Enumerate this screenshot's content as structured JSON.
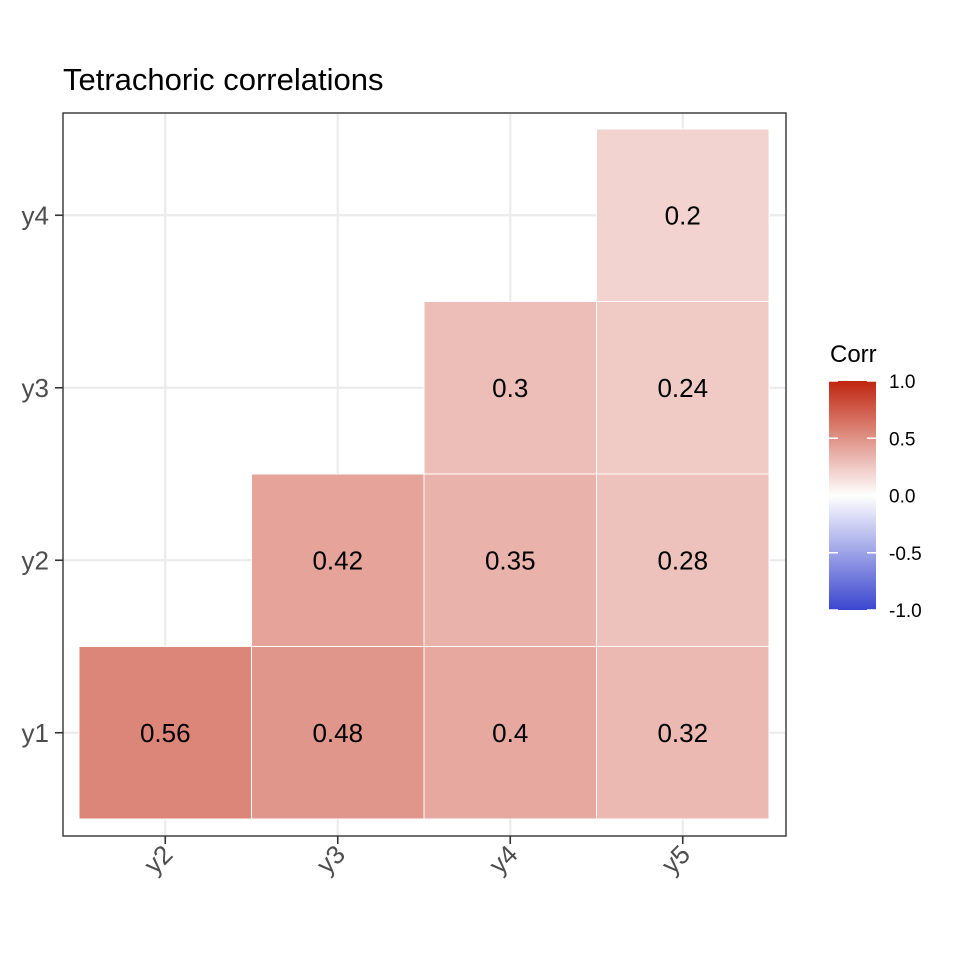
{
  "chart_data": {
    "type": "heatmap",
    "title": "Tetrachoric correlations",
    "x_categories": [
      "y2",
      "y3",
      "y4",
      "y5"
    ],
    "y_categories": [
      "y1",
      "y2",
      "y3",
      "y4"
    ],
    "cells": [
      {
        "x": "y2",
        "y": "y1",
        "value": 0.56,
        "label": "0.56"
      },
      {
        "x": "y3",
        "y": "y1",
        "value": 0.48,
        "label": "0.48"
      },
      {
        "x": "y4",
        "y": "y1",
        "value": 0.4,
        "label": "0.4"
      },
      {
        "x": "y5",
        "y": "y1",
        "value": 0.32,
        "label": "0.32"
      },
      {
        "x": "y3",
        "y": "y2",
        "value": 0.42,
        "label": "0.42"
      },
      {
        "x": "y4",
        "y": "y2",
        "value": 0.35,
        "label": "0.35"
      },
      {
        "x": "y5",
        "y": "y2",
        "value": 0.28,
        "label": "0.28"
      },
      {
        "x": "y4",
        "y": "y3",
        "value": 0.3,
        "label": "0.3"
      },
      {
        "x": "y5",
        "y": "y3",
        "value": 0.24,
        "label": "0.24"
      },
      {
        "x": "y5",
        "y": "y4",
        "value": 0.2,
        "label": "0.2"
      }
    ],
    "legend": {
      "title": "Corr",
      "placement": "right",
      "range": [
        -1.0,
        1.0
      ],
      "ticks": [
        {
          "value": 1.0,
          "label": "1.0"
        },
        {
          "value": 0.5,
          "label": "0.5"
        },
        {
          "value": 0.0,
          "label": "0.0"
        },
        {
          "value": -0.5,
          "label": "-0.5"
        },
        {
          "value": -1.0,
          "label": "-1.0"
        }
      ],
      "colors": {
        "low": "#3a46cf",
        "mid": "#ffffff",
        "high": "#c0250f"
      }
    },
    "grid": true
  }
}
